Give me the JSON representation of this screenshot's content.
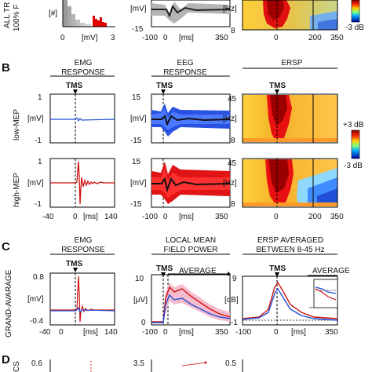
{
  "panel_letters": {
    "b": "B",
    "c": "C",
    "d": "D"
  },
  "top": {
    "ylabel": "ALL TR",
    "ylabel2": "100% F",
    "hist_unit": "[#]",
    "hist_x_unit": "[mV]",
    "hist_ticks": [
      "0",
      "3"
    ],
    "eeg_unit": "[mV]",
    "eeg_ymin": "-15",
    "eeg_xticks": [
      "-100",
      "0",
      "[ms]",
      "350"
    ],
    "ersp_unit": "[Hz]",
    "ersp_ymin": "8",
    "ersp_xticks": [
      "0",
      "200",
      "350"
    ],
    "cbar_label": "-3 dB"
  },
  "B": {
    "headers": {
      "emg": [
        "EMG",
        "RESPONSE"
      ],
      "eeg": [
        "EEG",
        "RESPONSE"
      ],
      "ersp": [
        "ERSP"
      ]
    },
    "tms": "TMS",
    "rows": [
      {
        "label": "low-MEP",
        "emg_unit": "[mV]",
        "emg_ticks": [
          "1",
          "-1"
        ],
        "eeg_unit": "[mV]",
        "eeg_ticks": [
          "15",
          "-15"
        ],
        "ersp_unit": "[Hz]",
        "ersp_ticks": [
          "45",
          "8"
        ]
      },
      {
        "label": "high-MEP",
        "emg_unit": "[mV]",
        "emg_ticks": [
          "1",
          "-1"
        ],
        "eeg_unit": "[mV]",
        "eeg_ticks": [
          "15",
          "-15"
        ],
        "ersp_unit": "[Hz]",
        "ersp_ticks": [
          "45",
          "8"
        ]
      }
    ],
    "cbar": {
      "top": "+3 dB",
      "bottom": "-3 dB"
    },
    "emg_xticks": [
      "-40",
      "0",
      "[ms]",
      "140"
    ],
    "eeg_xticks": [
      "-100",
      "0",
      "[ms]",
      "350"
    ],
    "ersp_xticks": [
      "0",
      "200",
      "350"
    ]
  },
  "C": {
    "ylabel": "GRAND-AVARAGE",
    "headers": {
      "emg": [
        "EMG",
        "RESPONSE"
      ],
      "lmfp": [
        "LOCAL MEAN",
        "FIELD POWER"
      ],
      "ersp": [
        "ERSP AVERAGED",
        "BETWEEN 8-45 Hz"
      ]
    },
    "tms": "TMS",
    "average": "AVERAGE",
    "emg_unit": "[mV]",
    "emg_ticks": [
      "0.8",
      "-0.4"
    ],
    "lmfp_unit": "[μV]",
    "lmfp_ticks": [
      "10",
      "0"
    ],
    "ersp_unit": "[dB]",
    "ersp_ticks": [
      "9",
      "-1"
    ],
    "emg_xticks": [
      "-40",
      "0",
      "[ms]",
      "140"
    ],
    "lmfp_xticks": [
      "-100",
      "0",
      "[ms]",
      "350"
    ],
    "ersp_xticks": [
      "-100",
      "0",
      "[ms]",
      "350"
    ]
  },
  "D": {
    "ylabel": "CS",
    "ticks": [
      "0.6",
      "3.5",
      "0.5"
    ]
  }
}
